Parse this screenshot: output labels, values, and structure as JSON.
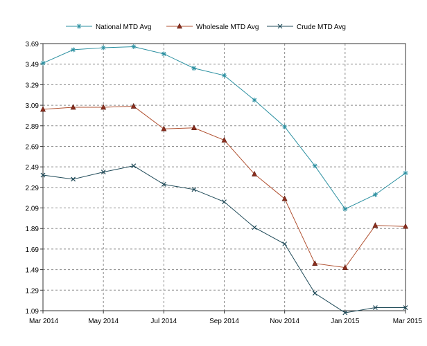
{
  "chart_data": {
    "type": "line",
    "title": "",
    "xlabel": "",
    "ylabel": "",
    "grid": true,
    "legend_position": "top",
    "x_ticks": [
      "Mar 2014",
      "May 2014",
      "Jul 2014",
      "Sep 2014",
      "Nov 2014",
      "Jan 2015",
      "Mar 2015"
    ],
    "y_ticks": [
      "1.09",
      "1.29",
      "1.49",
      "1.69",
      "1.89",
      "2.09",
      "2.29",
      "2.49",
      "2.69",
      "2.89",
      "3.09",
      "3.29",
      "3.49",
      "3.69"
    ],
    "ylim": [
      1.09,
      3.69
    ],
    "x": [
      "Mar 2014",
      "Apr 2014",
      "May 2014",
      "Jun 2014",
      "Jul 2014",
      "Aug 2014",
      "Sep 2014",
      "Oct 2014",
      "Nov 2014",
      "Dec 2014",
      "Jan 2015",
      "Feb 2015",
      "Mar 2015"
    ],
    "series": [
      {
        "name": "National MTD Avg",
        "color": "#2a8fa0",
        "marker": "asterisk",
        "values": [
          3.5,
          3.63,
          3.65,
          3.66,
          3.59,
          3.45,
          3.38,
          3.14,
          2.88,
          2.5,
          2.08,
          2.22,
          2.43
        ]
      },
      {
        "name": "Wholesale MTD Avg",
        "color": "#b05030",
        "marker": "triangle",
        "values": [
          3.05,
          3.07,
          3.07,
          3.08,
          2.86,
          2.87,
          2.75,
          2.42,
          2.18,
          1.55,
          1.51,
          1.92,
          1.91
        ]
      },
      {
        "name": "Crude MTD Avg",
        "color": "#1f4a58",
        "marker": "x",
        "values": [
          2.41,
          2.37,
          2.44,
          2.5,
          2.32,
          2.27,
          2.15,
          1.9,
          1.74,
          1.26,
          1.07,
          1.12,
          1.12
        ]
      }
    ]
  }
}
